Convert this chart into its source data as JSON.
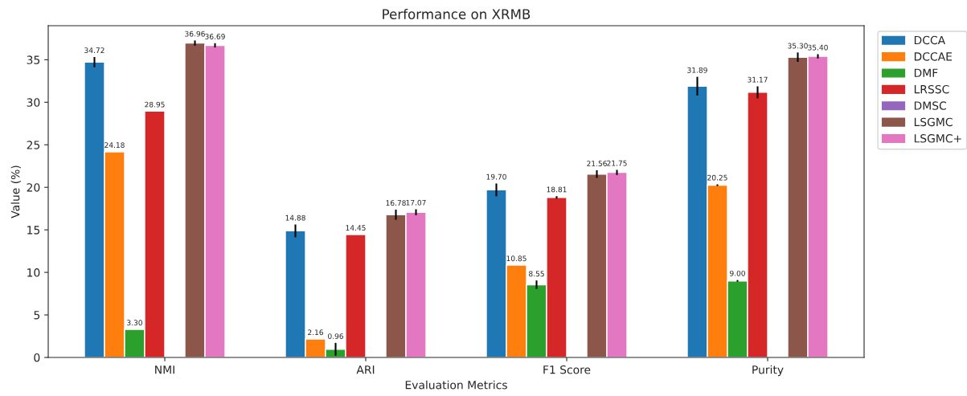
{
  "chart_data": {
    "type": "bar",
    "title": "Performance on XRMB",
    "xlabel": "Evaluation Metrics",
    "ylabel": "Value (%)",
    "categories": [
      "NMI",
      "ARI",
      "F1 Score",
      "Purity"
    ],
    "series": [
      {
        "name": "DCCA",
        "color": "#1f77b4",
        "values": [
          34.72,
          14.88,
          19.7,
          31.89
        ],
        "errors": [
          0.6,
          0.75,
          0.75,
          1.1
        ],
        "value_labels": [
          "34.72",
          "14.88",
          "19.70",
          "31.89"
        ]
      },
      {
        "name": "DCCAE",
        "color": "#ff7f0e",
        "values": [
          24.18,
          2.16,
          10.85,
          20.25
        ],
        "errors": [
          null,
          null,
          null,
          0.1
        ],
        "value_labels": [
          "24.18",
          "2.16",
          "10.85",
          "20.25"
        ]
      },
      {
        "name": "DMF",
        "color": "#2ca02c",
        "values": [
          3.3,
          0.96,
          8.55,
          9.0
        ],
        "errors": [
          null,
          0.75,
          0.5,
          0.1
        ],
        "value_labels": [
          "3.30",
          "0.96",
          "8.55",
          "9.00"
        ]
      },
      {
        "name": "LRSSC",
        "color": "#d62728",
        "values": [
          28.95,
          14.45,
          18.81,
          31.17
        ],
        "errors": [
          null,
          null,
          0.15,
          0.7
        ],
        "value_labels": [
          "28.95",
          "14.45",
          "18.81",
          "31.17"
        ]
      },
      {
        "name": "DMSC",
        "color": "#9467bd",
        "values": [
          null,
          null,
          null,
          null
        ]
      },
      {
        "name": "LSGMC",
        "color": "#8c564b",
        "values": [
          36.96,
          16.78,
          21.56,
          35.3
        ],
        "errors": [
          0.3,
          0.6,
          0.45,
          0.55
        ],
        "value_labels": [
          "36.96",
          "16.78",
          "21.56",
          "35.30"
        ]
      },
      {
        "name": "LSGMC+",
        "color": "#e377c2",
        "values": [
          36.69,
          17.07,
          21.75,
          35.4
        ],
        "errors": [
          0.25,
          0.35,
          0.3,
          0.25
        ],
        "value_labels": [
          "36.69",
          "17.07",
          "21.75",
          "35.40"
        ]
      }
    ],
    "ylim": [
      0,
      39
    ],
    "yticks": [
      0,
      5,
      10,
      15,
      20,
      25,
      30,
      35
    ],
    "legend": "right",
    "grid": false
  }
}
